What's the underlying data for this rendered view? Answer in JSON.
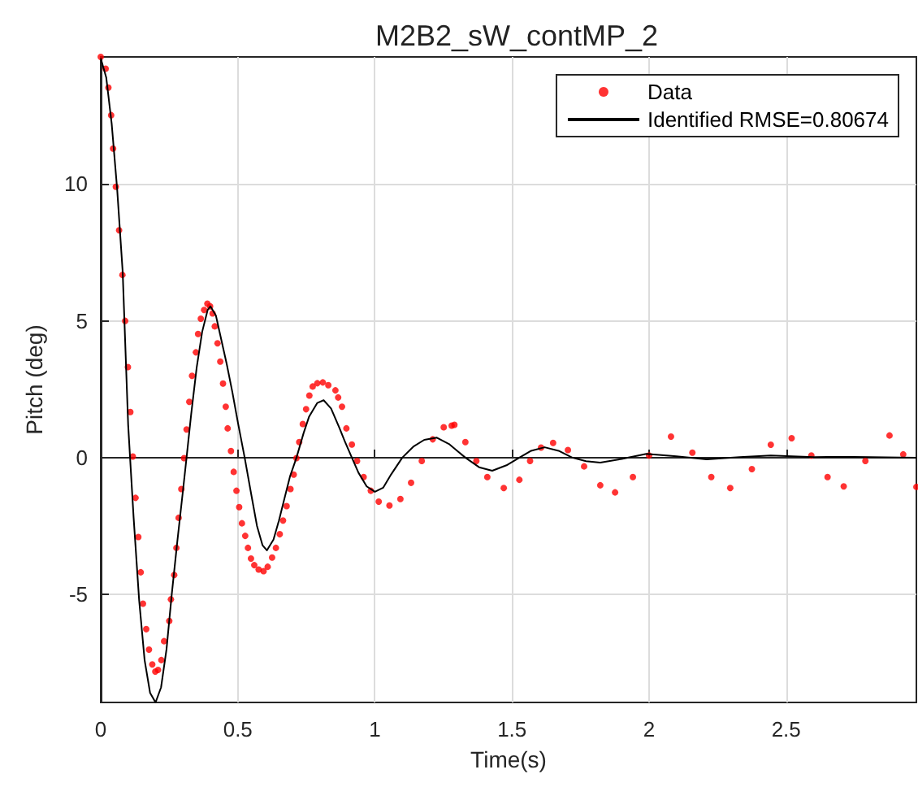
{
  "chart_data": {
    "type": "line",
    "title": "M2B2_sW_contMP_2",
    "xlabel": "Time(s)",
    "ylabel": "Pitch (deg)",
    "xlim": [
      0,
      2.975
    ],
    "ylim": [
      -8.95,
      14.65
    ],
    "xticks": [
      0,
      0.5,
      1,
      1.5,
      2,
      2.5
    ],
    "yticks": [
      -5,
      0,
      5,
      10
    ],
    "grid": true,
    "legend": "top right",
    "series": [
      {
        "name": "Data",
        "type": "scatter",
        "marker": "circle",
        "color": "#ff0000",
        "x": [
          0,
          0.018,
          0.028,
          0.038,
          0.045,
          0.055,
          0.067,
          0.079,
          0.089,
          0.099,
          0.108,
          0.117,
          0.127,
          0.137,
          0.146,
          0.154,
          0.166,
          0.176,
          0.188,
          0.199,
          0.209,
          0.221,
          0.231,
          0.25,
          0.256,
          0.268,
          0.276,
          0.284,
          0.294,
          0.304,
          0.313,
          0.323,
          0.333,
          0.347,
          0.355,
          0.365,
          0.377,
          0.389,
          0.399,
          0.408,
          0.416,
          0.426,
          0.436,
          0.446,
          0.456,
          0.463,
          0.475,
          0.485,
          0.495,
          0.505,
          0.515,
          0.527,
          0.537,
          0.548,
          0.56,
          0.576,
          0.594,
          0.609,
          0.625,
          0.639,
          0.653,
          0.665,
          0.678,
          0.692,
          0.704,
          0.714,
          0.724,
          0.737,
          0.749,
          0.761,
          0.773,
          0.79,
          0.81,
          0.83,
          0.856,
          0.866,
          0.88,
          0.896,
          0.916,
          0.935,
          0.959,
          0.985,
          1.014,
          1.053,
          1.093,
          1.132,
          1.171,
          1.211,
          1.251,
          1.28,
          1.29,
          1.33,
          1.37,
          1.41,
          1.47,
          1.527,
          1.566,
          1.606,
          1.65,
          1.704,
          1.763,
          1.822,
          1.876,
          1.941,
          2.0,
          2.08,
          2.158,
          2.227,
          2.296,
          2.375,
          2.444,
          2.52,
          2.592,
          2.651,
          2.71,
          2.789,
          2.877,
          2.927,
          2.975
        ],
        "values": [
          14.65,
          14.22,
          13.53,
          12.52,
          11.3,
          9.9,
          8.31,
          6.68,
          5.0,
          3.31,
          1.67,
          0.04,
          -1.47,
          -2.9,
          -4.19,
          -5.34,
          -6.27,
          -7.02,
          -7.56,
          -7.82,
          -7.76,
          -7.4,
          -6.71,
          -5.97,
          -5.18,
          -4.29,
          -3.3,
          -2.2,
          -1.15,
          -0.02,
          1.03,
          2.04,
          2.99,
          3.85,
          4.52,
          5.08,
          5.4,
          5.63,
          5.53,
          5.27,
          4.8,
          4.18,
          3.51,
          2.71,
          1.86,
          1.07,
          0.24,
          -0.52,
          -1.21,
          -1.81,
          -2.4,
          -2.86,
          -3.3,
          -3.69,
          -3.93,
          -4.09,
          -4.15,
          -3.99,
          -3.65,
          -3.3,
          -2.8,
          -2.3,
          -1.77,
          -1.15,
          -0.62,
          -0.02,
          0.57,
          1.23,
          1.77,
          2.27,
          2.6,
          2.72,
          2.75,
          2.65,
          2.46,
          2.2,
          1.86,
          1.07,
          0.48,
          -0.12,
          -0.71,
          -1.21,
          -1.61,
          -1.75,
          -1.51,
          -0.92,
          -0.12,
          0.67,
          1.11,
          1.17,
          1.2,
          0.57,
          -0.12,
          -0.71,
          -1.11,
          -0.81,
          -0.12,
          0.37,
          0.54,
          0.28,
          -0.32,
          -1.01,
          -1.27,
          -0.71,
          0.08,
          0.77,
          0.18,
          -0.71,
          -1.11,
          -0.42,
          0.47,
          0.71,
          0.08,
          -0.71,
          -1.05,
          -0.12,
          0.81,
          0.12,
          -1.07
        ]
      },
      {
        "name": "Identified RMSE=0.80674",
        "marker": "none",
        "color": "#000000",
        "x": [
          0,
          0.02,
          0.04,
          0.06,
          0.08,
          0.1,
          0.107,
          0.12,
          0.14,
          0.16,
          0.18,
          0.2,
          0.22,
          0.24,
          0.259,
          0.28,
          0.3,
          0.313,
          0.33,
          0.35,
          0.37,
          0.39,
          0.4,
          0.42,
          0.44,
          0.46,
          0.48,
          0.5,
          0.525,
          0.55,
          0.57,
          0.59,
          0.606,
          0.63,
          0.65,
          0.67,
          0.69,
          0.714,
          0.74,
          0.76,
          0.79,
          0.813,
          0.84,
          0.87,
          0.89,
          0.916,
          0.94,
          0.97,
          1.0,
          1.03,
          1.06,
          1.1,
          1.14,
          1.18,
          1.226,
          1.27,
          1.3,
          1.33,
          1.38,
          1.428,
          1.48,
          1.527,
          1.57,
          1.619,
          1.67,
          1.72,
          1.77,
          1.822,
          1.9,
          1.99,
          2.1,
          2.21,
          2.33,
          2.444,
          2.6,
          2.75,
          2.975
        ],
        "values": [
          14.6,
          13.9,
          12.2,
          9.8,
          6.8,
          1.2,
          0,
          -2.2,
          -5.2,
          -7.4,
          -8.6,
          -8.95,
          -8.4,
          -7.0,
          -5.0,
          -3.0,
          -1.2,
          0,
          1.6,
          3.3,
          4.6,
          5.4,
          5.53,
          5.2,
          4.3,
          3.4,
          2.4,
          1.3,
          0,
          -1.4,
          -2.5,
          -3.2,
          -3.39,
          -3.0,
          -2.3,
          -1.5,
          -0.7,
          0,
          0.9,
          1.5,
          2.0,
          2.1,
          1.8,
          1.1,
          0.6,
          0,
          -0.55,
          -1.05,
          -1.25,
          -1.1,
          -0.6,
          0,
          0.4,
          0.65,
          0.73,
          0.5,
          0.25,
          0,
          -0.35,
          -0.48,
          -0.28,
          0,
          0.25,
          0.38,
          0.25,
          0,
          -0.13,
          -0.18,
          -0.05,
          0.14,
          0.05,
          -0.06,
          0.02,
          0.08,
          0.02,
          0.03,
          0
        ]
      }
    ]
  }
}
